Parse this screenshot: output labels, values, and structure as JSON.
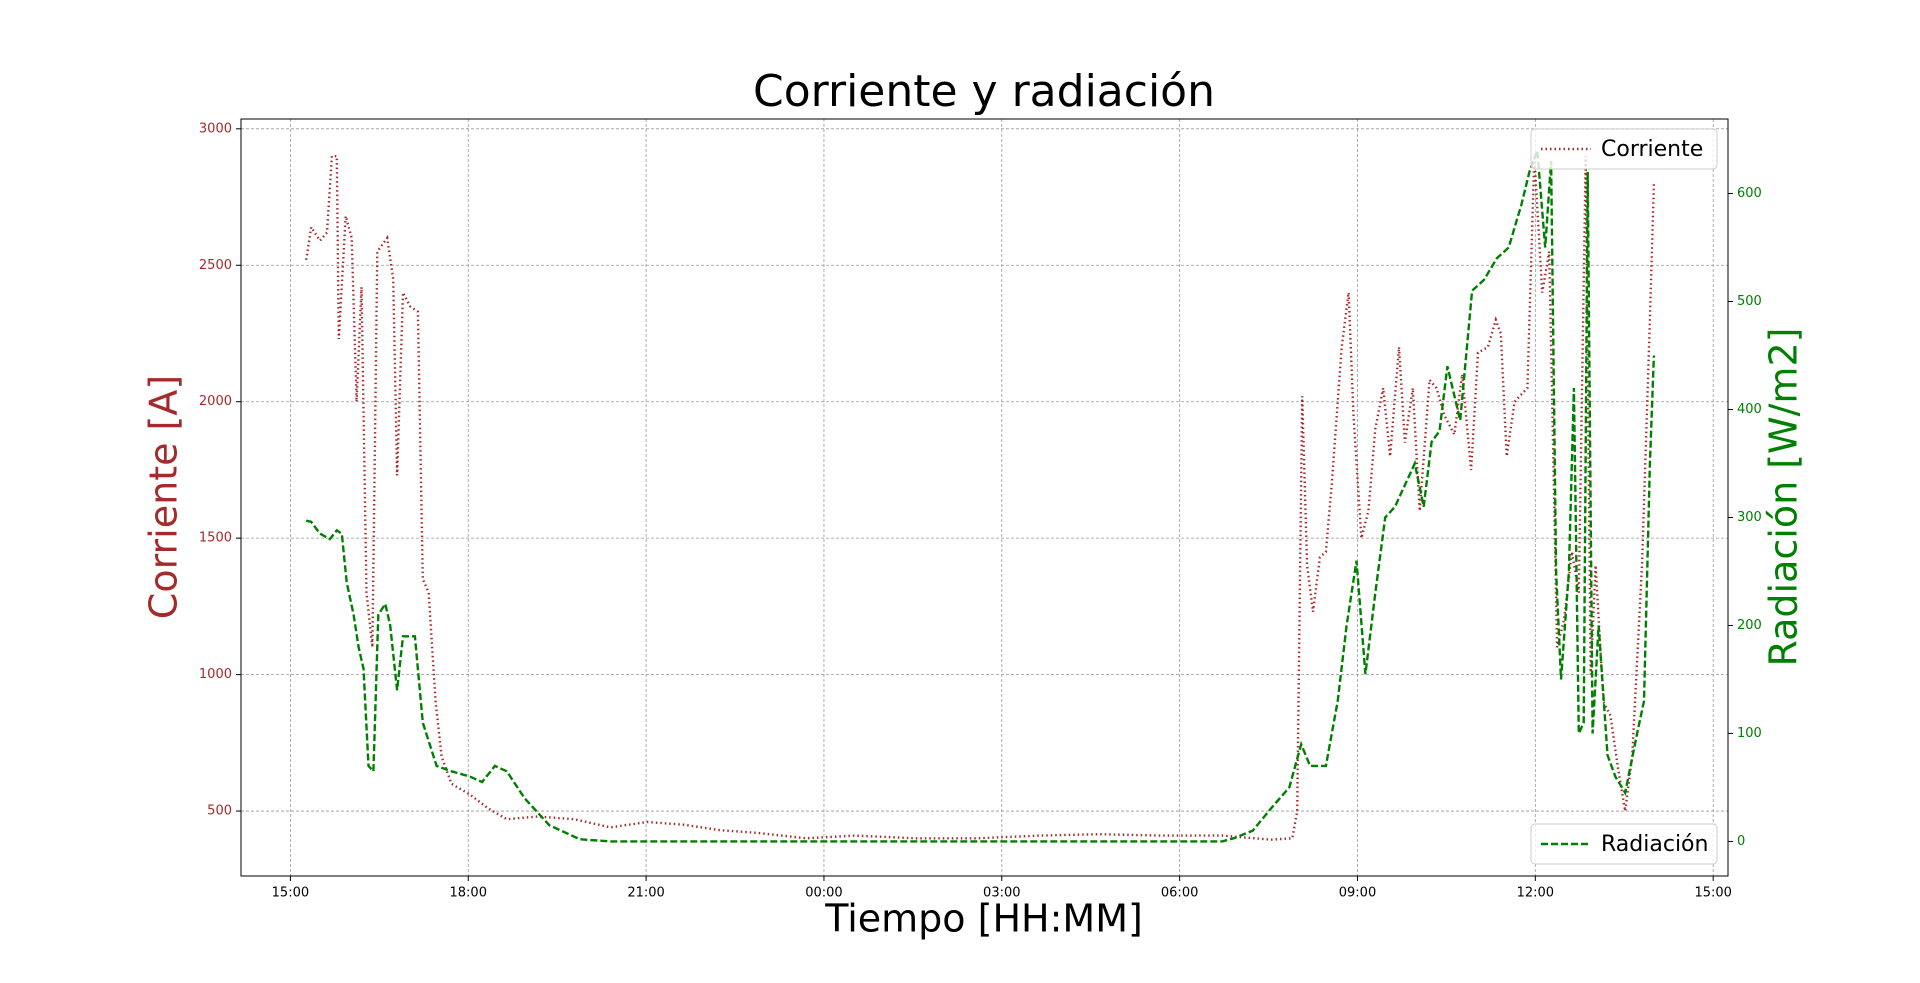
{
  "chart_data": {
    "type": "line",
    "title": "Corriente y radiación",
    "xlabel": "Tiempo [HH:MM]",
    "ylabel": "Corriente [A]",
    "y2label": "Radiación [W/m2]",
    "xlim": [
      "14:10",
      "15:15"
    ],
    "xticks": [
      "15:00",
      "18:00",
      "21:00",
      "00:00",
      "03:00",
      "06:00",
      "09:00",
      "12:00",
      "15:00"
    ],
    "ylim": [
      262,
      3036
    ],
    "yticks": [
      500,
      1000,
      1500,
      2000,
      2500,
      3000
    ],
    "y2lim": [
      -32,
      669
    ],
    "y2ticks": [
      0,
      100,
      200,
      300,
      400,
      500,
      600
    ],
    "grid": true,
    "series": [
      {
        "name": "Corriente",
        "color": "#a52a2a",
        "style": "dotted",
        "axis": "y",
        "legend": "upper right",
        "x": [
          "15:16",
          "15:21",
          "15:30",
          "15:37",
          "15:42",
          "15:47",
          "15:49",
          "15:56",
          "16:02",
          "16:07",
          "16:12",
          "16:17",
          "16:23",
          "16:28",
          "16:38",
          "16:44",
          "16:48",
          "16:54",
          "17:01",
          "17:09",
          "17:14",
          "17:20",
          "17:27",
          "17:33",
          "17:43",
          "18:02",
          "18:20",
          "18:39",
          "19:10",
          "19:47",
          "20:24",
          "21:01",
          "21:38",
          "22:15",
          "22:53",
          "23:42",
          "00:31",
          "01:33",
          "02:35",
          "03:37",
          "04:39",
          "05:41",
          "06:43",
          "07:32",
          "07:54",
          "07:59",
          "08:04",
          "08:09",
          "08:15",
          "08:22",
          "08:28",
          "08:34",
          "08:44",
          "08:51",
          "08:56",
          "09:04",
          "09:11",
          "09:18",
          "09:26",
          "09:33",
          "09:42",
          "09:48",
          "09:56",
          "10:03",
          "10:13",
          "10:20",
          "10:28",
          "10:38",
          "10:46",
          "10:55",
          "11:02",
          "11:12",
          "11:20",
          "11:25",
          "11:31",
          "11:39",
          "11:52",
          "11:59",
          "12:07",
          "12:14",
          "12:22",
          "12:29",
          "12:37",
          "12:44",
          "12:51",
          "12:56",
          "13:01",
          "13:09",
          "13:16",
          "13:24",
          "13:31",
          "13:38",
          "13:48",
          "13:56",
          "14:00"
        ],
        "values": [
          2520,
          2640,
          2590,
          2620,
          2900,
          2900,
          2230,
          2680,
          2600,
          2000,
          2420,
          1300,
          1100,
          2550,
          2600,
          2450,
          1730,
          2400,
          2350,
          2330,
          1350,
          1300,
          900,
          700,
          600,
          560,
          510,
          470,
          480,
          470,
          440,
          460,
          450,
          430,
          420,
          400,
          410,
          400,
          400,
          410,
          415,
          410,
          410,
          395,
          400,
          500,
          2020,
          1400,
          1230,
          1430,
          1450,
          1700,
          2200,
          2400,
          1950,
          1500,
          1600,
          1900,
          2050,
          1800,
          2200,
          1850,
          2050,
          1600,
          2080,
          2050,
          1950,
          1880,
          2100,
          1750,
          2180,
          2200,
          2300,
          2250,
          1800,
          2000,
          2050,
          2900,
          2400,
          2550,
          1100,
          1200,
          1450,
          1300,
          2900,
          1000,
          1400,
          900,
          850,
          650,
          500,
          700,
          1400,
          2300,
          2800
        ]
      },
      {
        "name": "Radiación",
        "color": "#008000",
        "style": "dashed",
        "axis": "y2",
        "legend": "lower right",
        "x": [
          "15:16",
          "15:21",
          "15:30",
          "15:40",
          "15:47",
          "15:52",
          "15:57",
          "16:04",
          "16:09",
          "16:14",
          "16:19",
          "16:24",
          "16:29",
          "16:36",
          "16:41",
          "16:48",
          "16:54",
          "17:06",
          "17:14",
          "17:21",
          "17:28",
          "17:43",
          "18:02",
          "18:14",
          "18:27",
          "18:39",
          "18:57",
          "19:22",
          "19:53",
          "20:24",
          "06:43",
          "06:55",
          "07:14",
          "07:32",
          "07:51",
          "08:03",
          "08:12",
          "08:28",
          "08:40",
          "08:49",
          "08:59",
          "09:08",
          "09:18",
          "09:28",
          "09:38",
          "09:48",
          "09:58",
          "10:07",
          "10:15",
          "10:23",
          "10:31",
          "10:44",
          "10:56",
          "11:08",
          "11:21",
          "11:33",
          "11:46",
          "11:54",
          "12:02",
          "12:10",
          "12:16",
          "12:21",
          "12:26",
          "12:34",
          "12:39",
          "12:44",
          "12:49",
          "12:53",
          "12:58",
          "13:04",
          "13:13",
          "13:21",
          "13:31",
          "13:43",
          "13:50",
          "13:56",
          "14:00"
        ],
        "values": [
          297,
          296,
          285,
          280,
          288,
          285,
          240,
          210,
          180,
          160,
          70,
          65,
          210,
          220,
          200,
          140,
          190,
          190,
          110,
          90,
          70,
          65,
          60,
          55,
          70,
          65,
          40,
          15,
          2,
          0,
          0,
          3,
          10,
          30,
          50,
          90,
          70,
          70,
          130,
          200,
          260,
          155,
          230,
          300,
          310,
          330,
          350,
          310,
          370,
          380,
          440,
          390,
          510,
          520,
          540,
          550,
          590,
          620,
          640,
          550,
          630,
          250,
          150,
          250,
          420,
          100,
          110,
          620,
          100,
          200,
          80,
          60,
          45,
          100,
          130,
          350,
          450
        ]
      }
    ]
  }
}
